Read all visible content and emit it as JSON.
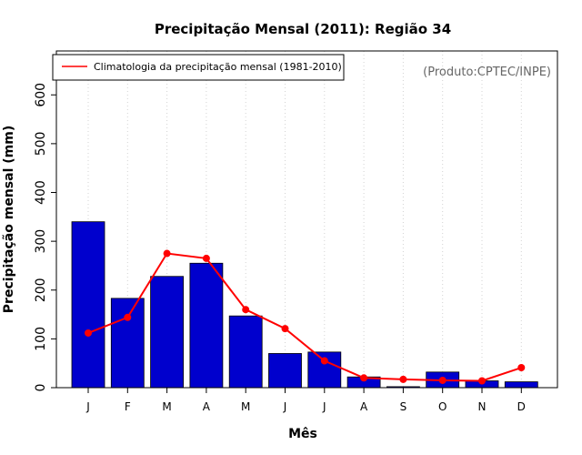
{
  "chart_data": {
    "type": "bar",
    "title": "Precipitação Mensal (2011): Região 34",
    "xlabel": "Mês",
    "ylabel": "Precipitação mensal (mm)",
    "ylim": [
      0,
      690
    ],
    "yticks": [
      0,
      100,
      200,
      300,
      400,
      500,
      600
    ],
    "categories": [
      "J",
      "F",
      "M",
      "A",
      "M",
      "J",
      "J",
      "A",
      "S",
      "O",
      "N",
      "D"
    ],
    "series": [
      {
        "name": "Precipitação mensal 2011",
        "kind": "bar",
        "color": "#0000cd",
        "values": [
          340,
          183,
          228,
          255,
          147,
          70,
          73,
          22,
          2,
          32,
          14,
          12
        ]
      },
      {
        "name": "Climatologia da precipitação mensal (1981-2010)",
        "kind": "line",
        "color": "#ff0000",
        "values": [
          112,
          144,
          275,
          265,
          160,
          121,
          55,
          20,
          17,
          15,
          14,
          41
        ]
      }
    ],
    "legend_label": "Climatologia da precipitação mensal (1981-2010)",
    "legend_position": "top-left",
    "credit": "(Produto:CPTEC/INPE)",
    "grid": "vertical-dotted"
  }
}
